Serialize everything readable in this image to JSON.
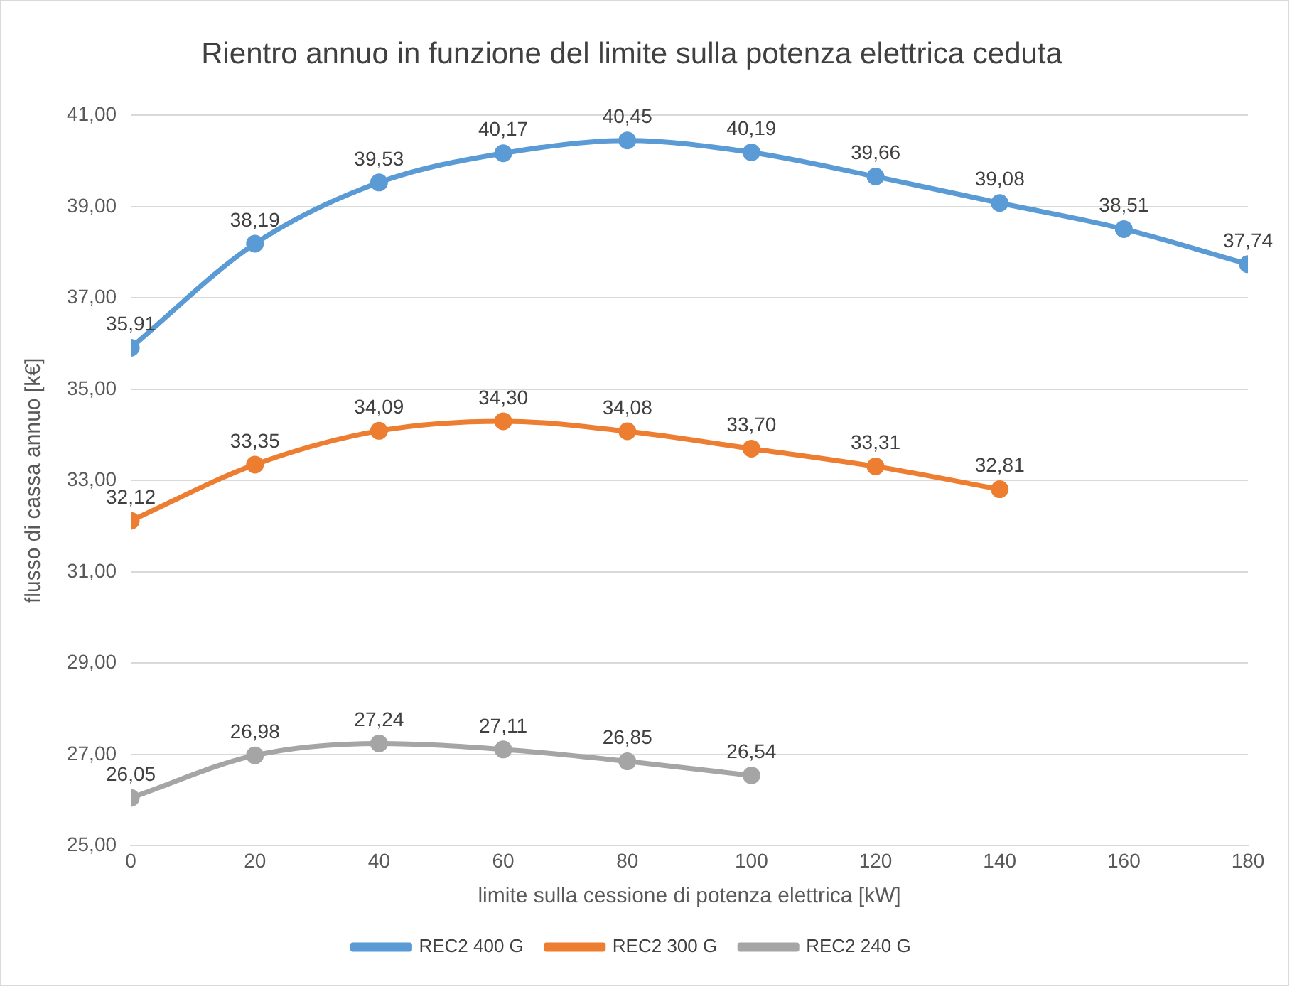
{
  "chart_data": {
    "type": "line",
    "title": "Rientro annuo in funzione del limite sulla potenza elettrica ceduta",
    "xlabel": "limite sulla cessione di potenza elettrica [kW]",
    "ylabel": "flusso di cassa annuo [k€]",
    "xlim": [
      0,
      180
    ],
    "xticks": [
      0,
      20,
      40,
      60,
      80,
      100,
      120,
      140,
      160,
      180
    ],
    "ylim": [
      25,
      41
    ],
    "yticks": [
      {
        "value": 25,
        "label": "25,00"
      },
      {
        "value": 27,
        "label": "27,00"
      },
      {
        "value": 29,
        "label": "29,00"
      },
      {
        "value": 31,
        "label": "31,00"
      },
      {
        "value": 33,
        "label": "33,00"
      },
      {
        "value": 35,
        "label": "35,00"
      },
      {
        "value": 37,
        "label": "37,00"
      },
      {
        "value": 39,
        "label": "39,00"
      },
      {
        "value": 41,
        "label": "41,00"
      }
    ],
    "grid": "y",
    "legend": "bottom",
    "marker": "circle",
    "line_style": "solid",
    "series": [
      {
        "name": "REC2 400 G",
        "color": "#5b9bd5",
        "x": [
          0,
          20,
          40,
          60,
          80,
          100,
          120,
          140,
          160,
          180
        ],
        "values": [
          35.91,
          38.19,
          39.53,
          40.17,
          40.45,
          40.19,
          39.66,
          39.08,
          38.51,
          37.74
        ],
        "value_labels": [
          "35,91",
          "38,19",
          "39,53",
          "40,17",
          "40,45",
          "40,19",
          "39,66",
          "39,08",
          "38,51",
          "37,74"
        ]
      },
      {
        "name": "REC2 300 G",
        "color": "#ed7d31",
        "x": [
          0,
          20,
          40,
          60,
          80,
          100,
          120,
          140
        ],
        "values": [
          32.12,
          33.35,
          34.09,
          34.3,
          34.08,
          33.7,
          33.31,
          32.81
        ],
        "value_labels": [
          "32,12",
          "33,35",
          "34,09",
          "34,30",
          "34,08",
          "33,70",
          "33,31",
          "32,81"
        ]
      },
      {
        "name": "REC2 240 G",
        "color": "#a5a5a5",
        "x": [
          0,
          20,
          40,
          60,
          80,
          100
        ],
        "values": [
          26.05,
          26.98,
          27.24,
          27.11,
          26.85,
          26.54
        ],
        "value_labels": [
          "26,05",
          "26,98",
          "27,24",
          "27,11",
          "26,85",
          "26,54"
        ]
      }
    ]
  }
}
